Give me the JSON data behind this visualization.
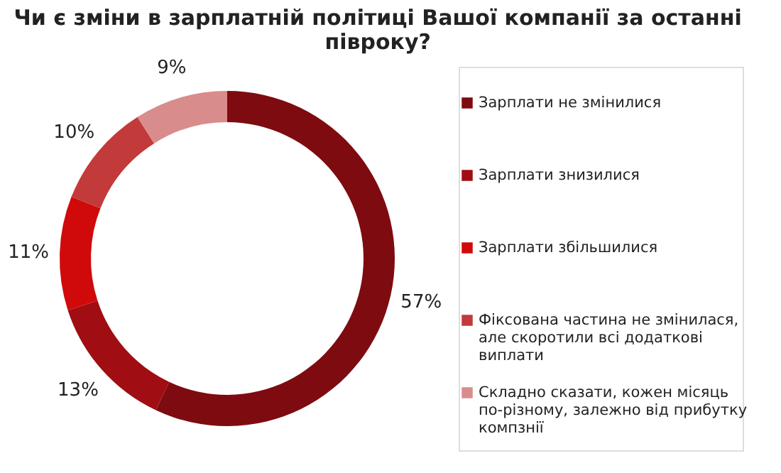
{
  "chart_data": {
    "type": "donut",
    "title": "Чи є зміни в зарплатній політиці Вашої компанії за останні півроку?",
    "categories": [
      "Зарплати не змінилися",
      "Зарплати знизилися",
      "Зарплати збільшилися",
      "Фіксована частина не змінилася, але скоротили всі додаткові виплати",
      "Складно сказати, кожен місяць по-різному, залежно від прибутку компзнії"
    ],
    "values": [
      57,
      13,
      11,
      10,
      9
    ],
    "colors": [
      "#7e0b10",
      "#a00d12",
      "#d00a0a",
      "#c23a3a",
      "#d98c8c"
    ],
    "value_labels": [
      "57%",
      "13%",
      "11%",
      "10%",
      "9%"
    ],
    "legend": "right"
  }
}
